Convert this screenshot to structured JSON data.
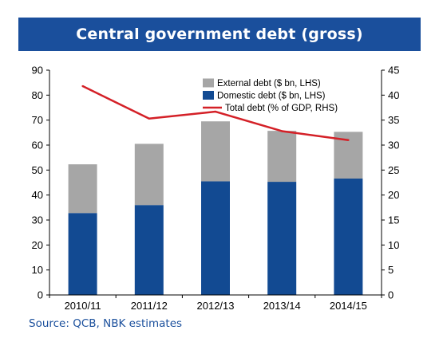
{
  "title": "Central government debt (gross)",
  "source": {
    "prefix": "Source:",
    "text": " QCB, NBK estimates"
  },
  "colors": {
    "external": "#a6a6a6",
    "domestic": "#124a92",
    "total": "#d42027",
    "title_bg": "#1a4f9c"
  },
  "chart_data": {
    "type": "bar",
    "stacked": true,
    "categories": [
      "2010/11",
      "2011/12",
      "2012/13",
      "2013/14",
      "2014/15"
    ],
    "series": [
      {
        "name": "Domestic debt ($ bn, LHS)",
        "axis": "left",
        "values": [
          32.8,
          36.0,
          45.5,
          45.3,
          46.6
        ]
      },
      {
        "name": "External debt ($ bn, LHS)",
        "axis": "left",
        "values": [
          19.5,
          24.5,
          24.0,
          20.4,
          18.7
        ]
      },
      {
        "name": "Total debt (% of GDP, RHS)",
        "axis": "right",
        "type": "line",
        "values": [
          41.8,
          35.3,
          36.7,
          32.8,
          31.0
        ]
      }
    ],
    "legend_order": [
      "External debt ($ bn, LHS)",
      "Domestic debt ($ bn, LHS)",
      "Total debt (% of GDP, RHS)"
    ],
    "ylim_left": [
      0,
      90
    ],
    "yticks_left": [
      0,
      10,
      20,
      30,
      40,
      50,
      60,
      70,
      80,
      90
    ],
    "ylim_right": [
      0,
      45
    ],
    "yticks_right": [
      0,
      5,
      10,
      15,
      20,
      25,
      30,
      35,
      40,
      45
    ],
    "grid": false,
    "legend_position": "top-right"
  }
}
